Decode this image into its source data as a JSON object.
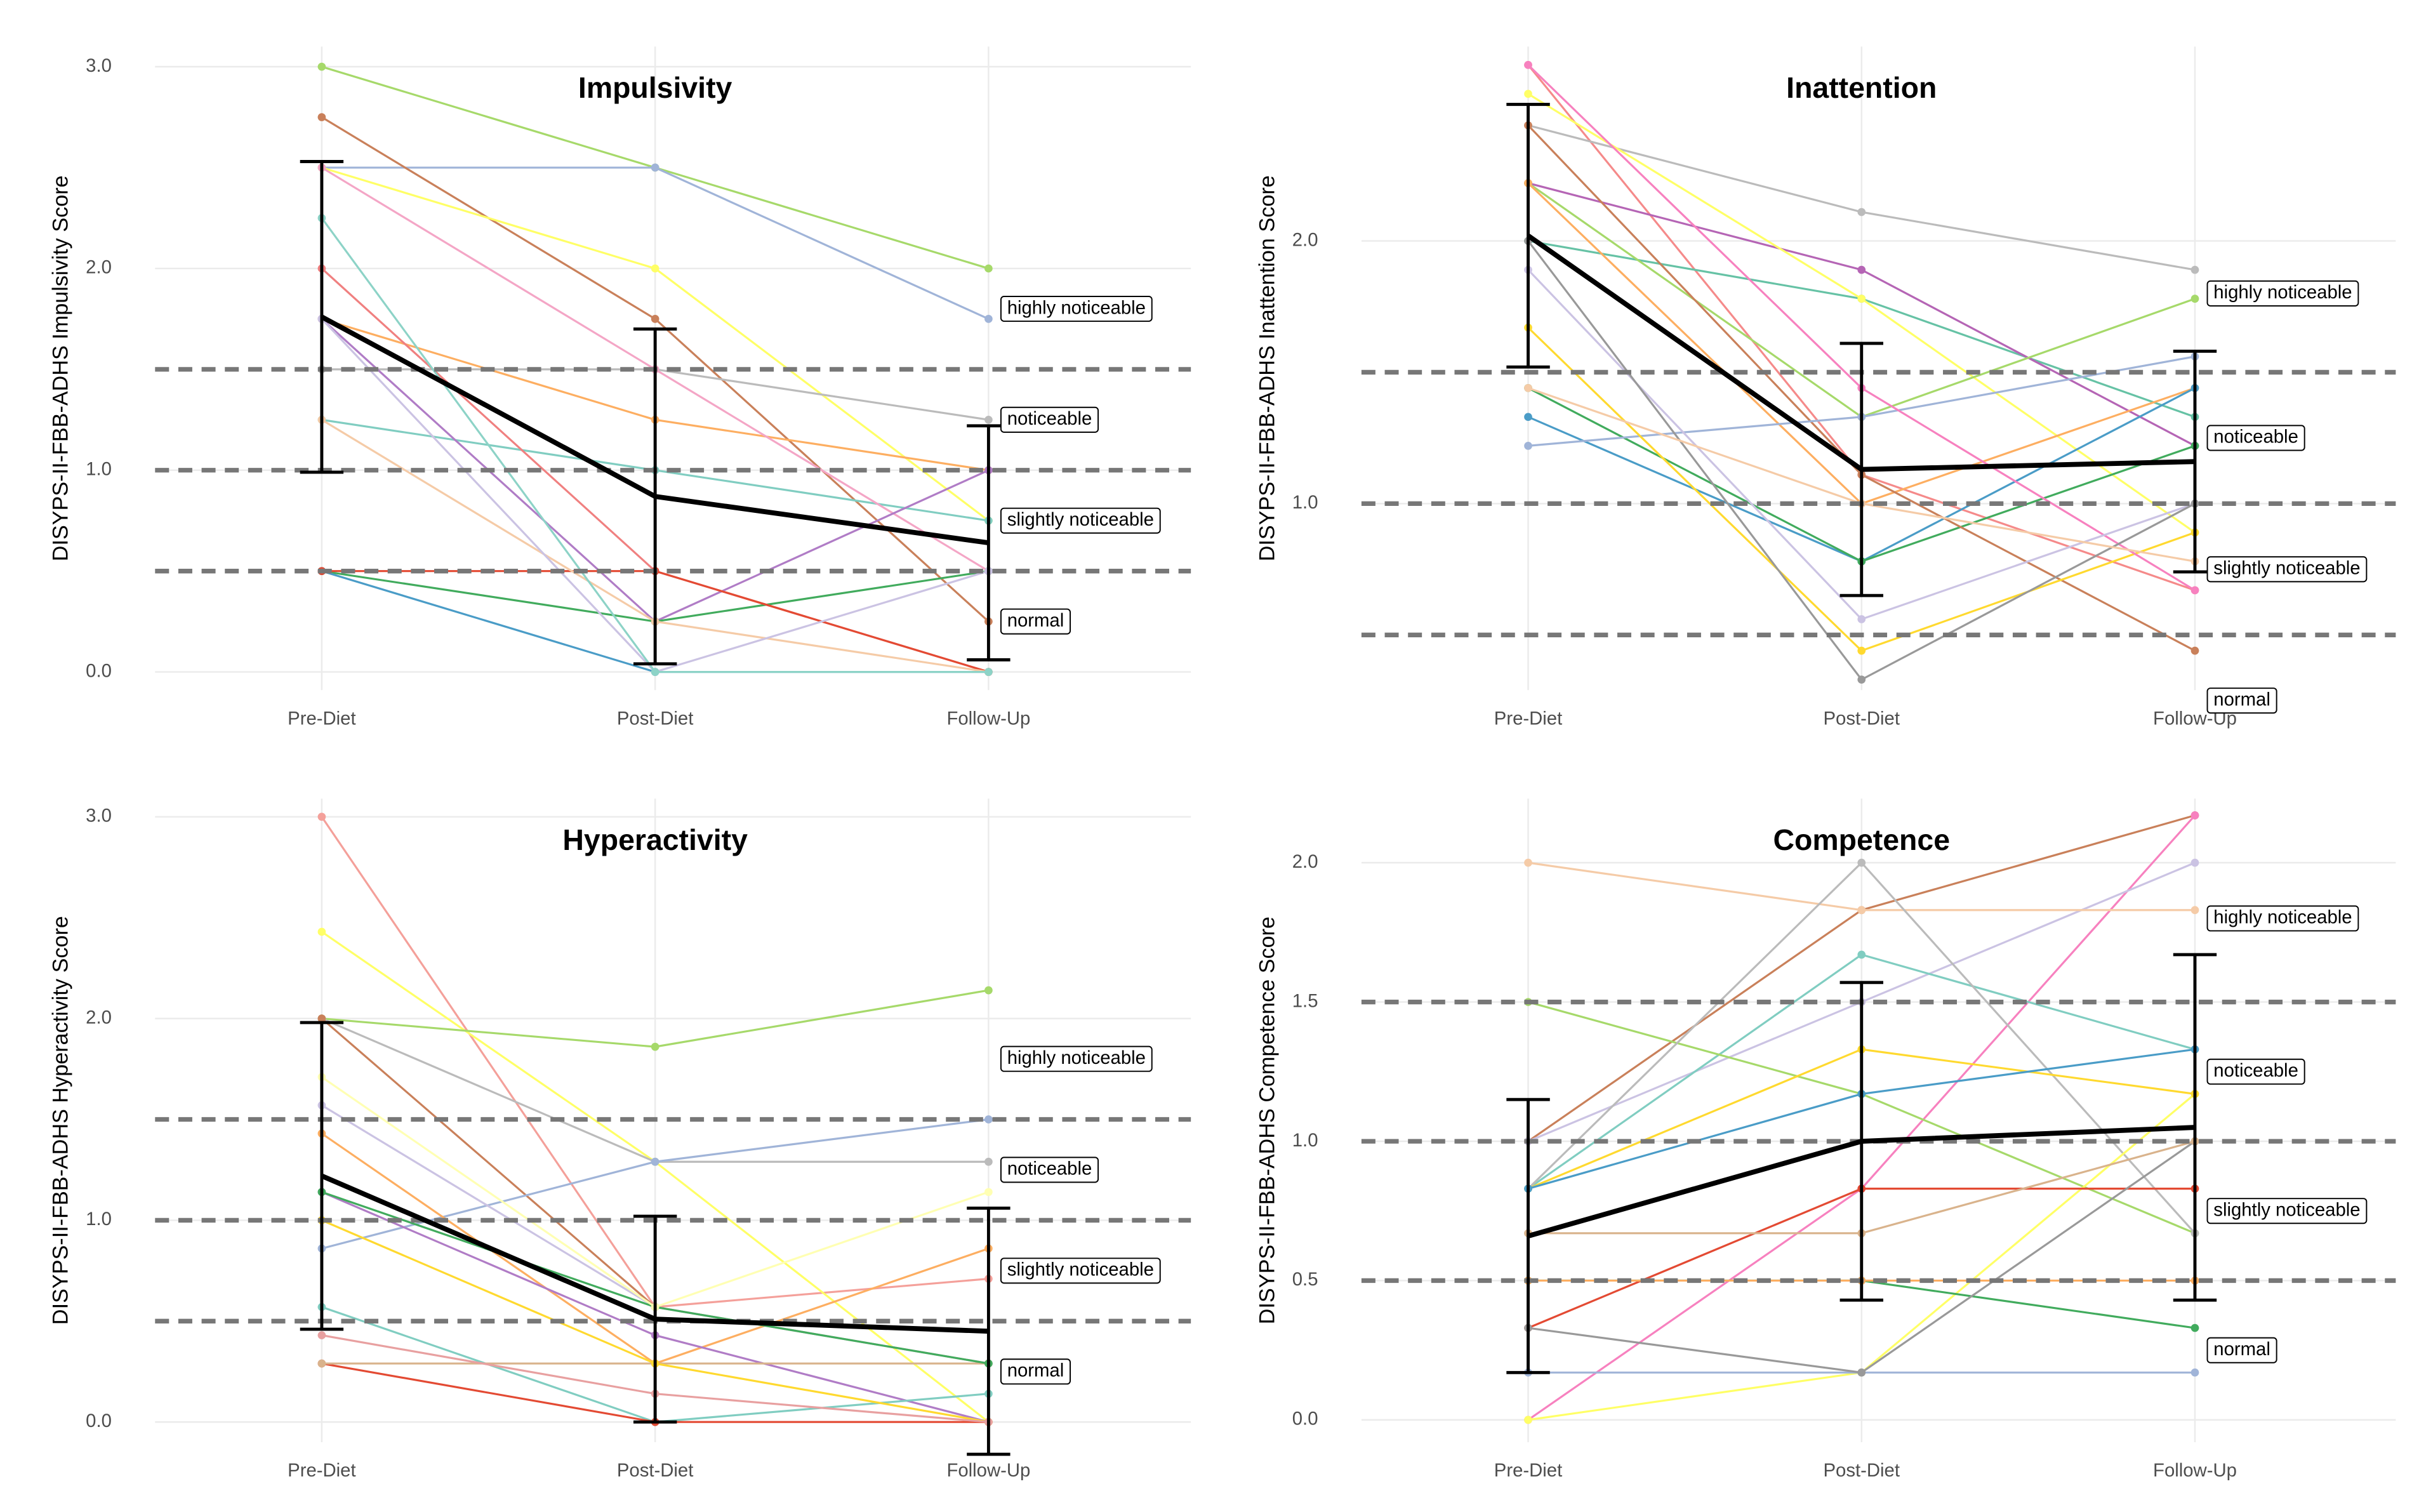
{
  "chart_data": [
    {
      "type": "line",
      "title": "Impulsivity",
      "y_label": "DISYPS-II-FBB-ADHS Impulsivity Score",
      "categories": [
        "Pre-Diet",
        "Post-Diet",
        "Follow-Up"
      ],
      "ylim": [
        -0.09,
        3.1
      ],
      "yticks": [
        {
          "value": 0,
          "label": "0.0"
        },
        {
          "value": 1,
          "label": "1.0"
        },
        {
          "value": 2,
          "label": "2.0"
        },
        {
          "value": 3,
          "label": "3.0"
        }
      ],
      "grid": true,
      "hlines": [
        0.5,
        1.0,
        1.5
      ],
      "annotations": [
        "normal",
        "slightly noticeable",
        "noticeable",
        "highly noticeable"
      ],
      "series": [
        {
          "color": "#a6d96a",
          "values": [
            3.0,
            2.5,
            2.0
          ]
        },
        {
          "color": "#a0b4d8",
          "values": [
            2.5,
            2.5,
            1.75
          ]
        },
        {
          "color": "#c9805a",
          "values": [
            2.75,
            1.75,
            0.25
          ]
        },
        {
          "color": "#ffff66",
          "values": [
            2.5,
            2.0,
            0.75
          ]
        },
        {
          "color": "#bbbbbb",
          "values": [
            1.5,
            1.5,
            1.25
          ]
        },
        {
          "color": "#fdae61",
          "values": [
            1.75,
            1.25,
            1.0
          ]
        },
        {
          "color": "#80cdc1",
          "values": [
            1.25,
            1.0,
            0.75
          ]
        },
        {
          "color": "#f4a6c6",
          "values": [
            2.5,
            1.5,
            0.5
          ]
        },
        {
          "color": "#b07cc6",
          "values": [
            1.75,
            0.25,
            1.0
          ]
        },
        {
          "color": "#f08080",
          "values": [
            2.0,
            0.5,
            0.0
          ]
        },
        {
          "color": "#41ab5d",
          "values": [
            0.5,
            0.25,
            0.5
          ]
        },
        {
          "color": "#4a9cc7",
          "values": [
            0.5,
            0.0,
            0.0
          ]
        },
        {
          "color": "#e34a33",
          "values": [
            0.5,
            0.5,
            0.0
          ]
        },
        {
          "color": "#f5cba7",
          "values": [
            1.25,
            0.25,
            0.0
          ]
        },
        {
          "color": "#cbc3e3",
          "values": [
            1.75,
            0.0,
            0.5
          ]
        },
        {
          "color": "#8dd3c7",
          "values": [
            2.25,
            0.0,
            0.0
          ]
        }
      ],
      "mean": {
        "color": "#000000",
        "values": [
          1.76,
          0.87,
          0.64
        ],
        "errors": [
          0.77,
          0.83,
          0.58
        ]
      }
    },
    {
      "type": "line",
      "title": "Inattention",
      "y_label": "DISYPS-II-FBB-ADHS Inattention Score",
      "categories": [
        "Pre-Diet",
        "Post-Diet",
        "Follow-Up"
      ],
      "ylim": [
        0.29,
        2.74
      ],
      "yticks": [
        {
          "value": 1,
          "label": "1.0"
        },
        {
          "value": 2,
          "label": "2.0"
        }
      ],
      "grid": true,
      "hlines": [
        0.5,
        1.0,
        1.5
      ],
      "annotations": [
        "normal",
        "slightly noticeable",
        "noticeable",
        "highly noticeable"
      ],
      "series": [
        {
          "color": "#f58a8a",
          "values": [
            2.67,
            1.11,
            0.67
          ]
        },
        {
          "color": "#bbbbbb",
          "values": [
            2.44,
            2.11,
            1.89
          ]
        },
        {
          "color": "#66c2a5",
          "values": [
            2.0,
            1.78,
            1.33
          ]
        },
        {
          "color": "#b565b5",
          "values": [
            2.22,
            1.89,
            1.22
          ]
        },
        {
          "color": "#ffff66",
          "values": [
            2.56,
            1.78,
            0.89
          ]
        },
        {
          "color": "#a6d96a",
          "values": [
            2.22,
            1.33,
            1.78
          ]
        },
        {
          "color": "#fdae61",
          "values": [
            2.22,
            1.0,
            1.44
          ]
        },
        {
          "color": "#4a9cc7",
          "values": [
            1.33,
            0.78,
            1.44
          ]
        },
        {
          "color": "#41ab5d",
          "values": [
            1.44,
            0.78,
            1.22
          ]
        },
        {
          "color": "#c9805a",
          "values": [
            2.44,
            1.11,
            0.44
          ]
        },
        {
          "color": "#a0b4d8",
          "values": [
            1.22,
            1.33,
            1.56
          ]
        },
        {
          "color": "#ffd92f",
          "values": [
            1.67,
            0.44,
            0.89
          ]
        },
        {
          "color": "#f781bf",
          "values": [
            2.67,
            1.44,
            0.67
          ]
        },
        {
          "color": "#cbc3e3",
          "values": [
            1.89,
            0.56,
            1.0
          ]
        },
        {
          "color": "#999999",
          "values": [
            2.0,
            0.33,
            1.0
          ]
        },
        {
          "color": "#f5cba7",
          "values": [
            1.44,
            1.0,
            0.78
          ]
        }
      ],
      "mean": {
        "color": "#000000",
        "values": [
          2.02,
          1.13,
          1.16
        ],
        "errors": [
          0.5,
          0.48,
          0.42
        ]
      }
    },
    {
      "type": "line",
      "title": "Hyperactivity",
      "y_label": "DISYPS-II-FBB-ADHS Hyperactivity Score",
      "categories": [
        "Pre-Diet",
        "Post-Diet",
        "Follow-Up"
      ],
      "ylim": [
        -0.1,
        3.09
      ],
      "yticks": [
        {
          "value": 0,
          "label": "0.0"
        },
        {
          "value": 1,
          "label": "1.0"
        },
        {
          "value": 2,
          "label": "2.0"
        },
        {
          "value": 3,
          "label": "3.0"
        }
      ],
      "grid": true,
      "hlines": [
        0.5,
        1.0,
        1.5
      ],
      "annotations": [
        "normal",
        "slightly noticeable",
        "noticeable",
        "highly noticeable"
      ],
      "series": [
        {
          "color": "#f4a09a",
          "values": [
            3.0,
            0.57,
            0.71
          ]
        },
        {
          "color": "#ffff66",
          "values": [
            2.43,
            1.29,
            0.0
          ]
        },
        {
          "color": "#a6d96a",
          "values": [
            2.0,
            1.86,
            2.14
          ]
        },
        {
          "color": "#bbbbbb",
          "values": [
            2.0,
            1.29,
            1.29
          ]
        },
        {
          "color": "#c9805a",
          "values": [
            2.0,
            0.57,
            0.29
          ]
        },
        {
          "color": "#a0b4d8",
          "values": [
            0.86,
            1.29,
            1.5
          ]
        },
        {
          "color": "#cbc3e3",
          "values": [
            1.57,
            0.57,
            0.29
          ]
        },
        {
          "color": "#fdae61",
          "values": [
            1.43,
            0.29,
            0.86
          ]
        },
        {
          "color": "#b07cc6",
          "values": [
            1.14,
            0.43,
            0.0
          ]
        },
        {
          "color": "#80cdc1",
          "values": [
            0.57,
            0.0,
            0.14
          ]
        },
        {
          "color": "#e34a33",
          "values": [
            0.29,
            0.0,
            0.0
          ]
        },
        {
          "color": "#d9b38c",
          "values": [
            0.29,
            0.29,
            0.29
          ]
        },
        {
          "color": "#ffd92f",
          "values": [
            1.0,
            0.29,
            0.0
          ]
        },
        {
          "color": "#e8a0a0",
          "values": [
            0.43,
            0.14,
            0.0
          ]
        },
        {
          "color": "#41ab5d",
          "values": [
            1.14,
            0.57,
            0.29
          ]
        },
        {
          "color": "#ffffb3",
          "values": [
            1.71,
            0.57,
            1.14
          ]
        }
      ],
      "mean": {
        "color": "#000000",
        "values": [
          1.22,
          0.51,
          0.45
        ],
        "errors": [
          0.76,
          0.51,
          0.61
        ]
      }
    },
    {
      "type": "line",
      "title": "Competence",
      "y_label": "DISYPS-II-FBB-ADHS Competence Score",
      "categories": [
        "Pre-Diet",
        "Post-Diet",
        "Follow-Up"
      ],
      "ylim": [
        -0.08,
        2.23
      ],
      "yticks": [
        {
          "value": 0,
          "label": "0.0"
        },
        {
          "value": 0.5,
          "label": "0.5"
        },
        {
          "value": 1,
          "label": "1.0"
        },
        {
          "value": 1.5,
          "label": "1.5"
        },
        {
          "value": 2,
          "label": "2.0"
        }
      ],
      "grid": true,
      "hlines": [
        0.5,
        1.0,
        1.5
      ],
      "annotations": [
        "normal",
        "slightly noticeable",
        "noticeable",
        "highly noticeable"
      ],
      "series": [
        {
          "color": "#c9805a",
          "values": [
            1.0,
            1.83,
            2.17
          ]
        },
        {
          "color": "#f781bf",
          "values": [
            0.0,
            0.83,
            2.17
          ]
        },
        {
          "color": "#cbc3e3",
          "values": [
            1.0,
            1.5,
            2.0
          ]
        },
        {
          "color": "#f5cba7",
          "values": [
            2.0,
            1.83,
            1.83
          ]
        },
        {
          "color": "#80cdc1",
          "values": [
            0.83,
            1.67,
            1.33
          ]
        },
        {
          "color": "#a6d96a",
          "values": [
            1.5,
            1.17,
            0.67
          ]
        },
        {
          "color": "#bbbbbb",
          "values": [
            0.83,
            2.0,
            0.67
          ]
        },
        {
          "color": "#ffff66",
          "values": [
            0.0,
            0.17,
            1.17
          ]
        },
        {
          "color": "#ffd92f",
          "values": [
            0.83,
            1.33,
            1.17
          ]
        },
        {
          "color": "#4a9cc7",
          "values": [
            0.83,
            1.17,
            1.33
          ]
        },
        {
          "color": "#e34a33",
          "values": [
            0.33,
            0.83,
            0.83
          ]
        },
        {
          "color": "#41ab5d",
          "values": [
            0.5,
            0.5,
            0.33
          ]
        },
        {
          "color": "#fdae61",
          "values": [
            0.5,
            0.5,
            0.5
          ]
        },
        {
          "color": "#a0b4d8",
          "values": [
            0.17,
            0.17,
            0.17
          ]
        },
        {
          "color": "#999999",
          "values": [
            0.33,
            0.17,
            1.0
          ]
        },
        {
          "color": "#d9b38c",
          "values": [
            0.67,
            0.67,
            1.0
          ]
        }
      ],
      "mean": {
        "color": "#000000",
        "values": [
          0.66,
          1.0,
          1.05
        ],
        "errors": [
          0.49,
          0.57,
          0.62
        ]
      }
    }
  ]
}
